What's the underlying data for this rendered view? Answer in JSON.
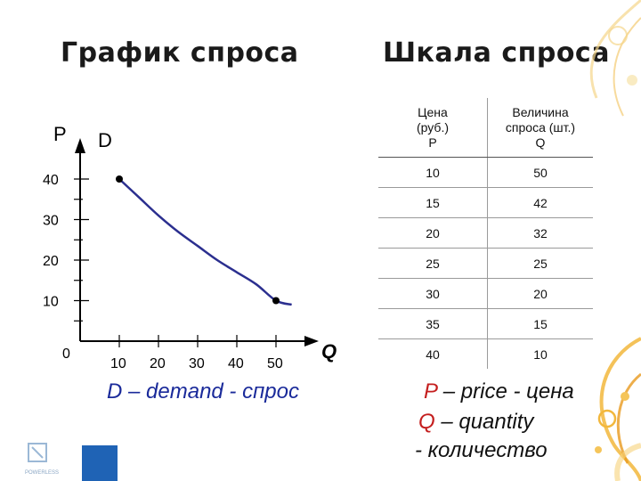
{
  "titles": {
    "left": "График спроса",
    "right": "Шкала спроса"
  },
  "table": {
    "header_price": [
      "Цена",
      "(руб.)",
      "P"
    ],
    "header_qty": [
      "Величина",
      "спроса (шт.)",
      "Q"
    ],
    "rows": [
      {
        "price": "10",
        "qty": "50"
      },
      {
        "price": "15",
        "qty": "42"
      },
      {
        "price": "20",
        "qty": "32"
      },
      {
        "price": "25",
        "qty": "25"
      },
      {
        "price": "30",
        "qty": "20"
      },
      {
        "price": "35",
        "qty": "15"
      },
      {
        "price": "40",
        "qty": "10"
      }
    ]
  },
  "legend": {
    "d_letter": "D",
    "d_rest": " – demand - спрос",
    "p_letter": "P",
    "p_rest": " – price - цена",
    "q_letter": "Q",
    "q_rest": " – quantity",
    "qty_word": "- количество"
  },
  "chart_data": {
    "type": "line",
    "title": "График спроса",
    "xlabel": "Q",
    "ylabel": "P",
    "curve_label": "D",
    "origin_label": "0",
    "x_ticks": [
      "10",
      "20",
      "30",
      "40",
      "50"
    ],
    "y_ticks": [
      "10",
      "20",
      "30",
      "40"
    ],
    "xlim": [
      0,
      55
    ],
    "ylim": [
      0,
      45
    ],
    "series": [
      {
        "x": [
          10,
          15,
          20,
          25,
          30,
          35,
          40,
          45,
          50,
          54
        ],
        "y": [
          40,
          35.5,
          31,
          27,
          23.5,
          20,
          17,
          14,
          10,
          9
        ]
      }
    ],
    "marked_points": [
      {
        "x": 10,
        "y": 40
      },
      {
        "x": 50,
        "y": 10
      }
    ],
    "curve_color": "#2b2f8f"
  },
  "decor": {
    "logo_text": "POWERLESS"
  }
}
